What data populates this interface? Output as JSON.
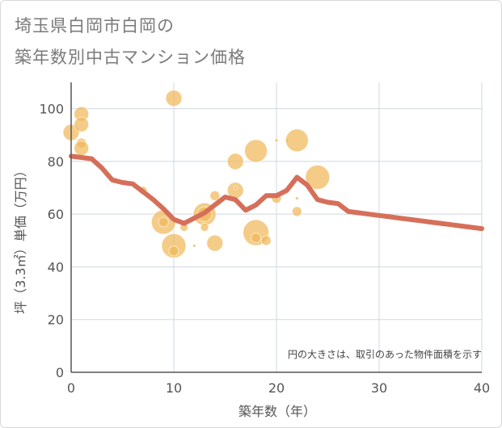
{
  "title_line1": "埼玉県白岡市白岡の",
  "title_line2": "築年数別中古マンション価格",
  "chart_data": {
    "type": "scatter",
    "xlabel": "築年数（年）",
    "ylabel": "坪（3.3㎡）単価（万円）",
    "xlim": [
      0,
      40
    ],
    "ylim": [
      0,
      110
    ],
    "xticks": [
      0,
      10,
      20,
      30,
      40
    ],
    "yticks": [
      0,
      20,
      40,
      60,
      80,
      100
    ],
    "grid": true,
    "note": "円の大きさは、取引のあった物件面積を示す",
    "colors": {
      "bubble": "#f0b95a",
      "line": "#d66f5a",
      "grid": "#cfd8e0",
      "axis": "#555555"
    },
    "bubbles": [
      {
        "x": 0,
        "y": 91,
        "size": 10
      },
      {
        "x": 1,
        "y": 98,
        "size": 9
      },
      {
        "x": 1,
        "y": 94,
        "size": 9
      },
      {
        "x": 1,
        "y": 87,
        "size": 6
      },
      {
        "x": 1,
        "y": 85,
        "size": 9
      },
      {
        "x": 7,
        "y": 69,
        "size": 5
      },
      {
        "x": 9,
        "y": 57,
        "size": 15
      },
      {
        "x": 9,
        "y": 57,
        "size": 6
      },
      {
        "x": 10,
        "y": 104,
        "size": 10
      },
      {
        "x": 10,
        "y": 48,
        "size": 15
      },
      {
        "x": 10,
        "y": 46,
        "size": 6
      },
      {
        "x": 11,
        "y": 55,
        "size": 5
      },
      {
        "x": 12,
        "y": 48,
        "size": 2
      },
      {
        "x": 13,
        "y": 60,
        "size": 14
      },
      {
        "x": 13,
        "y": 60,
        "size": 9
      },
      {
        "x": 13,
        "y": 55,
        "size": 5
      },
      {
        "x": 14,
        "y": 67,
        "size": 6
      },
      {
        "x": 14,
        "y": 49,
        "size": 10
      },
      {
        "x": 16,
        "y": 80,
        "size": 10
      },
      {
        "x": 16,
        "y": 69,
        "size": 10
      },
      {
        "x": 16,
        "y": 70,
        "size": 2
      },
      {
        "x": 18,
        "y": 84,
        "size": 14
      },
      {
        "x": 18,
        "y": 53,
        "size": 16
      },
      {
        "x": 18,
        "y": 51,
        "size": 6
      },
      {
        "x": 19,
        "y": 50,
        "size": 6
      },
      {
        "x": 20,
        "y": 66,
        "size": 6
      },
      {
        "x": 20,
        "y": 88,
        "size": 2
      },
      {
        "x": 21,
        "y": 88,
        "size": 2
      },
      {
        "x": 22,
        "y": 88,
        "size": 14
      },
      {
        "x": 22,
        "y": 66,
        "size": 2
      },
      {
        "x": 22,
        "y": 61,
        "size": 6
      },
      {
        "x": 24,
        "y": 74,
        "size": 15
      }
    ],
    "line": {
      "x": [
        0,
        1,
        2,
        3,
        4,
        5,
        6,
        7,
        8,
        9,
        10,
        11,
        12,
        13,
        14,
        15,
        16,
        17,
        18,
        19,
        20,
        21,
        22,
        23,
        24,
        25,
        26,
        27,
        28,
        29,
        30,
        31,
        32,
        33,
        34,
        35,
        36,
        37,
        38,
        39,
        40
      ],
      "y": [
        82,
        81.5,
        81,
        77.5,
        73,
        72,
        71.5,
        68.5,
        65.5,
        62,
        58,
        56.5,
        58.5,
        60.5,
        63.5,
        66.5,
        65.5,
        61.5,
        63.5,
        67,
        67,
        69,
        74,
        71,
        65.5,
        64.5,
        64,
        61,
        60.5,
        60,
        59.5,
        59,
        58.5,
        58,
        57.5,
        57,
        56.5,
        56,
        55.5,
        55,
        54.5
      ]
    }
  }
}
